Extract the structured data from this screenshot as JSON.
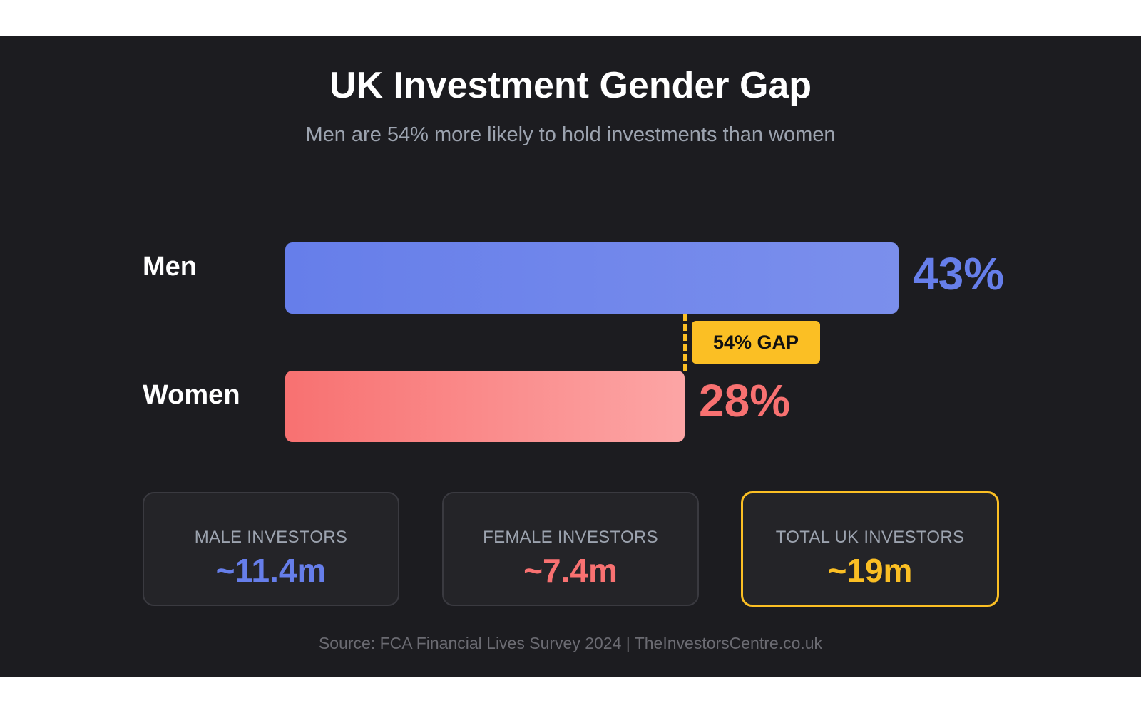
{
  "header": {
    "title": "UK Investment Gender Gap",
    "subtitle": "Men are 54% more likely to hold investments than women"
  },
  "bars": [
    {
      "label": "Men",
      "value": 43,
      "value_label": "43%",
      "color": "#667eea",
      "color_end": "#7b8fec"
    },
    {
      "label": "Women",
      "value": 28,
      "value_label": "28%",
      "color": "#f87171",
      "color_end": "#fca5a5"
    }
  ],
  "gap": {
    "label": "54% GAP",
    "color": "#fbbf24"
  },
  "cards": [
    {
      "label": "MALE INVESTORS",
      "value": "~11.4m",
      "color": "#667eea"
    },
    {
      "label": "FEMALE INVESTORS",
      "value": "~7.4m",
      "color": "#f87171"
    },
    {
      "label": "TOTAL UK INVESTORS",
      "value": "~19m",
      "color": "#fbbf24"
    }
  ],
  "footer": {
    "source": "Source: FCA Financial Lives Survey 2024 | TheInvestorsCentre.co.uk"
  },
  "chart_data": {
    "type": "bar",
    "orientation": "horizontal",
    "title": "UK Investment Gender Gap",
    "subtitle": "Men are 54% more likely to hold investments than women",
    "categories": [
      "Men",
      "Women"
    ],
    "values": [
      43,
      28
    ],
    "value_labels": [
      "43%",
      "28%"
    ],
    "unit": "%",
    "xlabel": "",
    "ylabel": "",
    "grid": false,
    "legend": null,
    "annotations": [
      {
        "text": "54% GAP",
        "type": "badge",
        "position": "between bars at end of Women bar"
      }
    ],
    "summary_stats": [
      {
        "label": "MALE INVESTORS",
        "value": "~11.4m"
      },
      {
        "label": "FEMALE INVESTORS",
        "value": "~7.4m"
      },
      {
        "label": "TOTAL UK INVESTORS",
        "value": "~19m"
      }
    ],
    "source": "Source: FCA Financial Lives Survey 2024 | TheInvestorsCentre.co.uk"
  }
}
